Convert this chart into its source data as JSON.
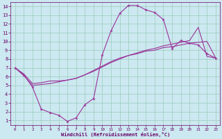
{
  "bg_color": "#cce8f0",
  "line_color": "#993399",
  "grid_color": "#99ccbb",
  "xlabel": "Windchill (Refroidissement éolien,°C)",
  "xlabel_color": "#660066",
  "tick_color": "#660066",
  "xlim": [
    -0.5,
    23.5
  ],
  "ylim": [
    0.5,
    14.5
  ],
  "xticks": [
    0,
    1,
    2,
    3,
    4,
    5,
    6,
    7,
    8,
    9,
    10,
    11,
    12,
    13,
    14,
    15,
    16,
    17,
    18,
    19,
    20,
    21,
    22,
    23
  ],
  "yticks": [
    1,
    2,
    3,
    4,
    5,
    6,
    7,
    8,
    9,
    10,
    11,
    12,
    13,
    14
  ],
  "line1_x": [
    0,
    1,
    2,
    3,
    4,
    5,
    6,
    7,
    8,
    9,
    10,
    11,
    12,
    13,
    14,
    15,
    16,
    17,
    18,
    19,
    20,
    21,
    22,
    23
  ],
  "line1_y": [
    7.0,
    6.2,
    4.8,
    2.3,
    1.9,
    1.6,
    0.9,
    1.3,
    2.8,
    3.5,
    8.5,
    11.2,
    13.2,
    14.1,
    14.1,
    13.6,
    13.3,
    12.5,
    9.2,
    10.1,
    9.8,
    9.6,
    8.6,
    8.1
  ],
  "line2_x": [
    0,
    1,
    2,
    3,
    4,
    5,
    6,
    7,
    8,
    9,
    10,
    11,
    12,
    13,
    14,
    15,
    16,
    17,
    18,
    19,
    20,
    21,
    22,
    23
  ],
  "line2_y": [
    7.0,
    6.3,
    5.2,
    5.3,
    5.5,
    5.5,
    5.6,
    5.8,
    6.2,
    6.7,
    7.2,
    7.7,
    8.1,
    8.4,
    8.6,
    8.9,
    9.0,
    9.3,
    9.4,
    9.6,
    9.8,
    9.9,
    10.0,
    8.1
  ],
  "line3_x": [
    0,
    1,
    2,
    3,
    4,
    5,
    6,
    7,
    8,
    9,
    10,
    11,
    12,
    13,
    14,
    15,
    16,
    17,
    18,
    19,
    20,
    21,
    22,
    23
  ],
  "line3_y": [
    7.0,
    6.1,
    5.0,
    5.1,
    5.2,
    5.4,
    5.6,
    5.8,
    6.2,
    6.6,
    7.1,
    7.6,
    8.0,
    8.4,
    8.7,
    9.0,
    9.2,
    9.5,
    9.7,
    9.9,
    10.1,
    11.6,
    8.3,
    8.1
  ]
}
